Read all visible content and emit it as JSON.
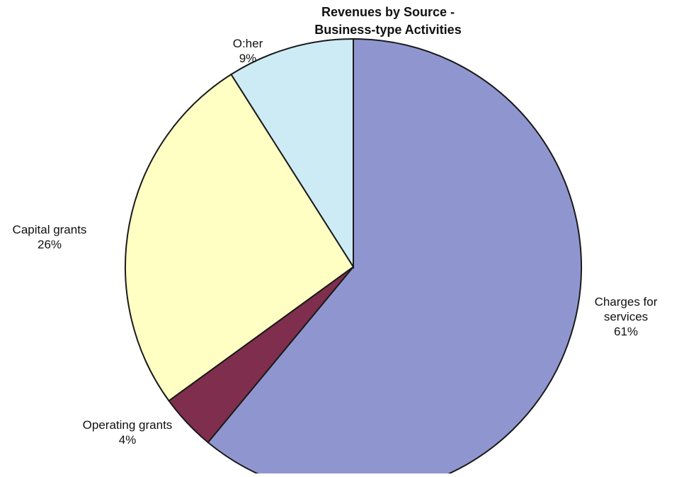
{
  "chart_data": {
    "type": "pie",
    "title_lines": [
      "Revenues by Source -",
      "Business-type Activities"
    ],
    "slices": [
      {
        "label_lines": [
          "Charges for",
          "services"
        ],
        "percent_label": "61%",
        "value": 61,
        "color": "#8f96cf"
      },
      {
        "label_lines": [
          "Operating grants"
        ],
        "percent_label": "4%",
        "value": 4,
        "color": "#7f2f4d"
      },
      {
        "label_lines": [
          "Capital grants"
        ],
        "percent_label": "26%",
        "value": 26,
        "color": "#ffffc4"
      },
      {
        "label_lines": [
          "O:her"
        ],
        "percent_label": "9%",
        "value": 9,
        "color": "#cdebf5"
      }
    ],
    "start_angle_deg": 0,
    "direction": "clockwise",
    "legend": "none"
  }
}
